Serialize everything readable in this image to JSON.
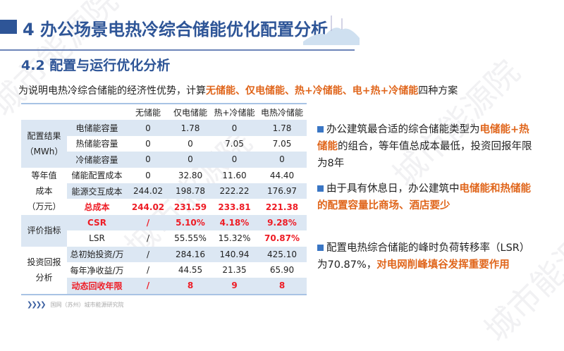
{
  "title": "4 办公场景电热冷综合储能优化配置分析",
  "subtitle": "4.2 配置与运行优化分析",
  "intro": {
    "prefix": "为说明电热冷综合储能的经济性优势，计算",
    "highlight": "无储能、仅电储能、热+冷储能、电+热+冷储能",
    "suffix": "四种方案"
  },
  "table": {
    "headers": [
      "无储能",
      "仅电储能",
      "热+冷储能",
      "电热冷储能"
    ],
    "groups": [
      {
        "label": "配置结果\n（MWh）",
        "rows": [
          {
            "name": "电储能容量",
            "values": [
              "0",
              "1.78",
              "0",
              "1.78"
            ]
          },
          {
            "name": "热储能容量",
            "values": [
              "0",
              "0",
              "7.05",
              "7.05"
            ]
          },
          {
            "name": "冷储能容量",
            "values": [
              "0",
              "0",
              "0",
              "0"
            ]
          }
        ]
      },
      {
        "label": "等年值\n成本\n（万元）",
        "rows": [
          {
            "name": "储能配置成本",
            "values": [
              "0",
              "32.80",
              "11.60",
              "44.40"
            ]
          },
          {
            "name": "能源交互成本",
            "values": [
              "244.02",
              "198.78",
              "222.22",
              "176.97"
            ]
          },
          {
            "name": "总成本",
            "values": [
              "244.02",
              "231.59",
              "233.81",
              "221.38"
            ],
            "highlight": true
          }
        ]
      },
      {
        "label": "评价指标",
        "rows": [
          {
            "name": "CSR",
            "values": [
              "/",
              "5.10%",
              "4.18%",
              "9.28%"
            ],
            "highlight": true
          },
          {
            "name": "LSR",
            "values": [
              "/",
              "55.55%",
              "15.32%",
              "70.87%"
            ],
            "highlight_last": true
          }
        ]
      },
      {
        "label": "投资回报\n分析",
        "rows": [
          {
            "name": "总初始投资/万",
            "values": [
              "/",
              "284.16",
              "140.94",
              "425.10"
            ]
          },
          {
            "name": "每年净收益/万",
            "values": [
              "/",
              "44.55",
              "21.35",
              "65.90"
            ]
          },
          {
            "name": "动态回收年限",
            "values": [
              "/",
              "8",
              "9",
              "8"
            ],
            "highlight": true
          }
        ]
      }
    ]
  },
  "bullets": [
    {
      "parts": [
        {
          "t": "办公建筑最合适的综合储能类型为"
        },
        {
          "t": "电储能+热储能",
          "hl": true
        },
        {
          "t": "的组合，等年值总成本最低，投资回报年限为8年"
        }
      ]
    },
    {
      "parts": [
        {
          "t": "由于具有休息日，办公建筑中"
        },
        {
          "t": "电储能和热储能的配置容量比商场、酒店要少",
          "hl": true
        }
      ]
    },
    {
      "parts": [
        {
          "t": "配置电热综合储能的峰时负荷转移率（LSR）为70.87%，"
        },
        {
          "t": "对电网削峰填谷发挥重要作用",
          "hl": true
        }
      ]
    }
  ],
  "footer": "国网（苏州）城市能源研究院",
  "watermark": "城市能源院",
  "colors": {
    "primary": "#2e5597",
    "highlight_orange": "#e0661c",
    "highlight_red": "#ee1c25",
    "row_shade": "#dce7f3"
  }
}
